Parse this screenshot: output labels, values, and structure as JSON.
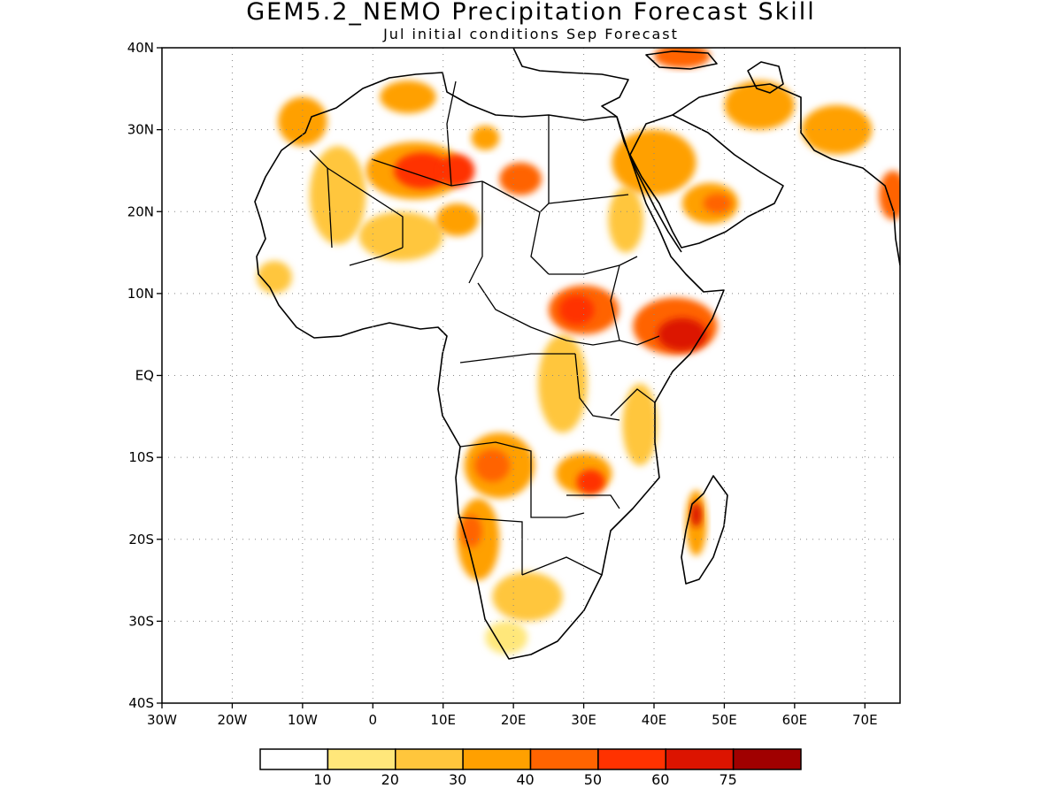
{
  "title": "GEM5.2_NEMO Precipitation Forecast Skill",
  "subtitle": "Jul initial conditions  Sep Forecast",
  "map": {
    "lon_range": [
      -30,
      75
    ],
    "lat_range": [
      -40,
      40
    ],
    "gridlines": "dotted",
    "lat_labels": [
      "40N",
      "30N",
      "20N",
      "10N",
      "EQ",
      "10S",
      "20S",
      "30S",
      "40S"
    ],
    "lat_values": [
      40,
      30,
      20,
      10,
      0,
      -10,
      -20,
      -30,
      -40
    ],
    "lon_labels": [
      "30W",
      "20W",
      "10W",
      "0",
      "10E",
      "20E",
      "30E",
      "40E",
      "50E",
      "60E",
      "70E"
    ],
    "lon_values": [
      -30,
      -20,
      -10,
      0,
      10,
      20,
      30,
      40,
      50,
      60,
      70
    ],
    "skill_regions": [
      {
        "lon": -10,
        "lat": 31,
        "rx": 3.5,
        "ry": 3,
        "level": 3
      },
      {
        "lon": 5,
        "lat": 34,
        "rx": 4,
        "ry": 2,
        "level": 3
      },
      {
        "lon": 6,
        "lat": 25,
        "rx": 7,
        "ry": 3.5,
        "level": 3
      },
      {
        "lon": 7,
        "lat": 25,
        "rx": 4,
        "ry": 2.2,
        "level": 5
      },
      {
        "lon": 12,
        "lat": 25,
        "rx": 2.5,
        "ry": 2,
        "level": 5
      },
      {
        "lon": 21,
        "lat": 24,
        "rx": 3,
        "ry": 2,
        "level": 4
      },
      {
        "lon": 16,
        "lat": 29,
        "rx": 2,
        "ry": 1.5,
        "level": 3
      },
      {
        "lon": -5,
        "lat": 22,
        "rx": 4,
        "ry": 6,
        "level": 2
      },
      {
        "lon": -14,
        "lat": 12,
        "rx": 2.5,
        "ry": 2,
        "level": 2
      },
      {
        "lon": 4,
        "lat": 17,
        "rx": 6,
        "ry": 3,
        "level": 2
      },
      {
        "lon": 12,
        "lat": 19,
        "rx": 3,
        "ry": 2,
        "level": 3
      },
      {
        "lon": 30,
        "lat": 8,
        "rx": 5,
        "ry": 3,
        "level": 4
      },
      {
        "lon": 29,
        "lat": 8,
        "rx": 2.5,
        "ry": 1.8,
        "level": 5
      },
      {
        "lon": 36,
        "lat": 19,
        "rx": 2.5,
        "ry": 4,
        "level": 2
      },
      {
        "lon": 43,
        "lat": 6,
        "rx": 6,
        "ry": 3.5,
        "level": 4
      },
      {
        "lon": 44,
        "lat": 5,
        "rx": 3.5,
        "ry": 2,
        "level": 6
      },
      {
        "lon": 27,
        "lat": -1,
        "rx": 3.5,
        "ry": 6,
        "level": 2
      },
      {
        "lon": 18,
        "lat": -11,
        "rx": 5,
        "ry": 4,
        "level": 3
      },
      {
        "lon": 17,
        "lat": -11,
        "rx": 2.5,
        "ry": 2,
        "level": 4
      },
      {
        "lon": 30,
        "lat": -12,
        "rx": 4,
        "ry": 2.5,
        "level": 3
      },
      {
        "lon": 31,
        "lat": -13,
        "rx": 2,
        "ry": 1.5,
        "level": 5
      },
      {
        "lon": 38,
        "lat": -6,
        "rx": 2.5,
        "ry": 5,
        "level": 2
      },
      {
        "lon": 15,
        "lat": -20,
        "rx": 3,
        "ry": 5,
        "level": 3
      },
      {
        "lon": 14,
        "lat": -19,
        "rx": 1.5,
        "ry": 2,
        "level": 4
      },
      {
        "lon": 22,
        "lat": -27,
        "rx": 5,
        "ry": 3,
        "level": 2
      },
      {
        "lon": 19,
        "lat": -32,
        "rx": 3,
        "ry": 2,
        "level": 1
      },
      {
        "lon": 46,
        "lat": -18,
        "rx": 1.5,
        "ry": 4,
        "level": 3
      },
      {
        "lon": 46,
        "lat": -17,
        "rx": 0.8,
        "ry": 1.5,
        "level": 6
      },
      {
        "lon": 40,
        "lat": 26,
        "rx": 6,
        "ry": 4,
        "level": 3
      },
      {
        "lon": 48,
        "lat": 21,
        "rx": 4,
        "ry": 2.5,
        "level": 3
      },
      {
        "lon": 49,
        "lat": 21,
        "rx": 2,
        "ry": 1.2,
        "level": 4
      },
      {
        "lon": 55,
        "lat": 33,
        "rx": 5,
        "ry": 3,
        "level": 3
      },
      {
        "lon": 66,
        "lat": 30,
        "rx": 5,
        "ry": 3,
        "level": 3
      },
      {
        "lon": 74,
        "lat": 22,
        "rx": 2,
        "ry": 3,
        "level": 4
      },
      {
        "lon": 44,
        "lat": 39,
        "rx": 4,
        "ry": 1.5,
        "level": 4
      }
    ]
  },
  "colorbar": {
    "colors": [
      "#ffffff",
      "#ffe77a",
      "#ffc63c",
      "#ffa000",
      "#ff6400",
      "#ff3200",
      "#dc1400",
      "#a00000"
    ],
    "labels": [
      "10",
      "20",
      "30",
      "40",
      "50",
      "60",
      "75"
    ]
  }
}
